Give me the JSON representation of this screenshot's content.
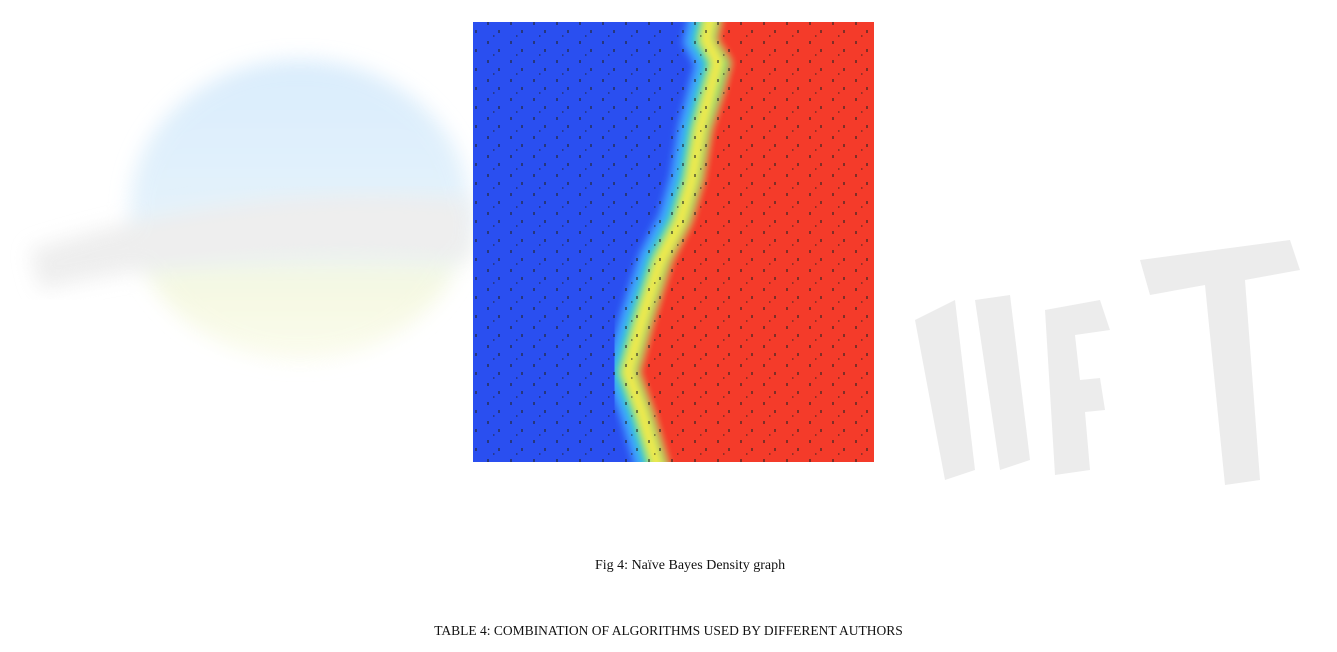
{
  "figure": {
    "caption": "Fig 4: Naïve Bayes Density graph"
  },
  "table": {
    "title": "TABLE 4: COMBINATION OF ALGORITHMS USED BY DIFFERENT AUTHORS"
  }
}
